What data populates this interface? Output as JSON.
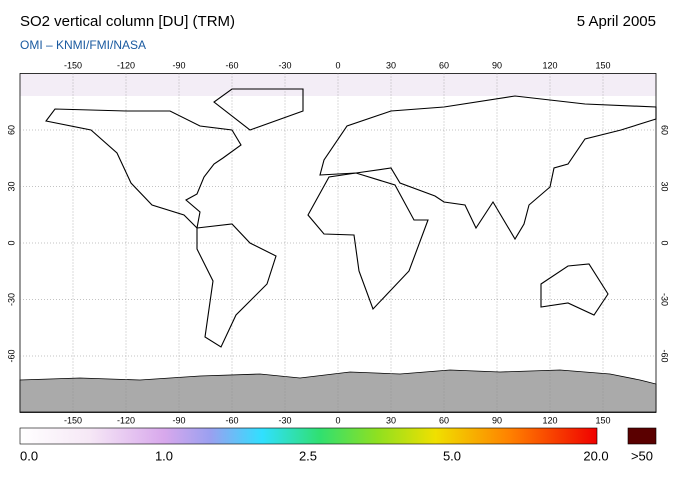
{
  "header": {
    "title": "SO2 vertical column [DU] (TRM)",
    "date": "5 April 2005",
    "credit": "OMI  –  KNMI/FMI/NASA"
  },
  "map": {
    "lonlim": [
      -180,
      180
    ],
    "latlim": [
      -90,
      90
    ],
    "lon_ticks": [
      -150,
      -120,
      -90,
      -60,
      -30,
      0,
      30,
      60,
      90,
      120,
      150
    ],
    "lat_ticks": [
      60,
      30,
      0,
      -30,
      -60
    ]
  },
  "colorbar": {
    "labels": [
      "0.0",
      "1.0",
      "2.5",
      "5.0",
      "20.0",
      ">50"
    ]
  }
}
